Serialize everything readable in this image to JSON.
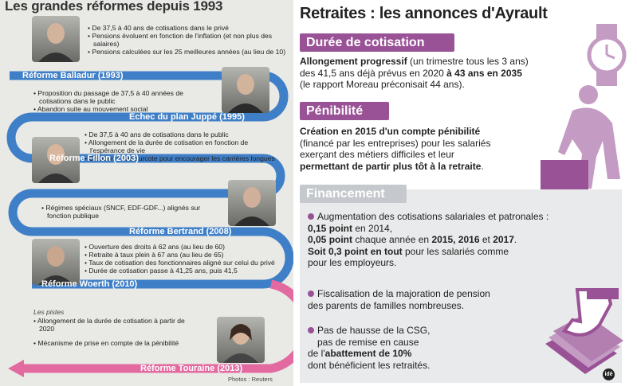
{
  "left": {
    "title": "Les grandes réformes depuis 1993",
    "reforms": [
      {
        "label": "Réforme Balladur (1993)",
        "color": "#3f7fc7",
        "bullets": [
          "• De 37,5 à 40 ans de cotisations dans le privé",
          "• Pensions évoluent en fonction de l'inflation (et non plus des salaires)",
          "• Pensions calculées sur les 25 meilleures années (au lieu de 10)"
        ]
      },
      {
        "label": "Échec du plan Juppé (1995)",
        "color": "#3f7fc7",
        "bullets": [
          "• Proposition du passage de 37,5 à 40 années de cotisations dans le public",
          "• Abandon suite au mouvement social"
        ]
      },
      {
        "label": "Réforme Fillon (2003)",
        "color": "#3f7fc7",
        "bullets": [
          "• De 37,5 à 40 ans de cotisations dans le public",
          "• Allongement de la durée de cotisation en fonction de l'espérance de vie",
          "• Création d'une surcote pour encourager les carrières longues"
        ]
      },
      {
        "label": "Réforme Bertrand (2008)",
        "color": "#3f7fc7",
        "bullets": [
          "• Régimes spéciaux (SNCF, EDF-GDF...) alignés sur fonction publique"
        ]
      },
      {
        "label": "Réforme Woerth (2010)",
        "color": "#3f7fc7",
        "bullets": [
          "• Ouverture des droits à 62 ans (au lieu de 60)",
          "• Retraite à taux plein à 67 ans (au lieu de 65)",
          "• Taux de cotisation des fonctionnaires aligné sur celui du privé",
          "• Durée de cotisation passe à 41,25 ans, puis 41,5"
        ]
      },
      {
        "label": "Réforme Touraine (2013)",
        "color": "#e36aa0",
        "bullets": [
          "• Allongement de la durée de cotisation à partir de 2020",
          "• Mécanisme de prise en compte de la pénibilité"
        ]
      }
    ],
    "pistes": "Les pistes",
    "credit": "Photos : Reuters"
  },
  "right": {
    "title": "Retraites : les annonces d'Ayrault",
    "duree": {
      "header": "Durée de cotisation",
      "line1_bold": "Allongement progressif",
      "line1_rest": " (un trimestre tous les 3 ans)",
      "line2_start": "des 41,5 ans déjà prévus en 2020 ",
      "line2_bold": "à 43 ans en 2035",
      "line3": "(le rapport Moreau préconisait 44 ans)."
    },
    "penibilite": {
      "header": "Pénibilité",
      "line1_bold": "Création en 2015 d'un compte pénibilité",
      "line2": "(financé par les entreprises) pour les salariés",
      "line3": "exerçant des métiers difficiles et leur",
      "line4_bold": "permettant de partir plus tôt à la retraite",
      "line4_rest": "."
    },
    "financement": {
      "header": "Financement",
      "item1_l1": "Augmentation des cotisations salariales et patronales :",
      "item1_l2_bold": "0,15 point",
      "item1_l2_rest": " en 2014,",
      "item1_l3_bold": "0,05 point",
      "item1_l3_mid": " chaque année en ",
      "item1_l3_years": "2015, 2016",
      "item1_l3_and": " et ",
      "item1_l3_last": "2017",
      "item1_l3_end": ".",
      "item1_l4_bold": "Soit 0,3 point en tout",
      "item1_l4_rest": " pour les salariés comme",
      "item1_l5": "pour les employeurs.",
      "item2_l1": "Fiscalisation de la majoration de pension",
      "item2_l2": "des parents de familles nombreuses.",
      "item3_l1": "Pas de hausse de la CSG,",
      "item3_l2": "pas de remise en cause",
      "item3_l3_start": "de l'",
      "item3_l3_bold": "abattement de 10%",
      "item3_l4": "dont bénéficient les retraités."
    },
    "logo": "idé"
  },
  "colors": {
    "purple": "#9a5296",
    "light_purple": "#c49bc2",
    "blue": "#3f7fc7",
    "pink": "#e36aa0"
  }
}
